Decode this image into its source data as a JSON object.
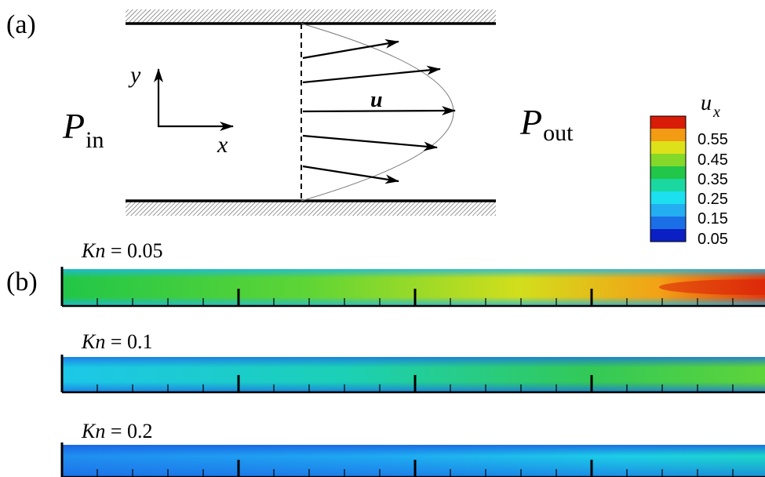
{
  "panel_a": {
    "label": "(a)",
    "p_in": {
      "symbol": "P",
      "subscript": "in"
    },
    "p_out": {
      "symbol": "P",
      "subscript": "out"
    },
    "axis_y": "y",
    "axis_x": "x",
    "velocity_label": "u"
  },
  "legend": {
    "symbol": "u",
    "subscript": "x",
    "levels": [
      "0.55",
      "0.45",
      "0.35",
      "0.25",
      "0.15",
      "0.05"
    ],
    "colors": [
      "#d81c08",
      "#f39b12",
      "#dde11a",
      "#84d82a",
      "#22c648",
      "#1ad8a0",
      "#1cdff0",
      "#23aef2",
      "#1b6fe6",
      "#0a20c4"
    ]
  },
  "panel_b": {
    "label": "(b)",
    "channels": [
      {
        "kn_symbol": "Kn",
        "kn_value": " = 0.05"
      },
      {
        "kn_symbol": "Kn",
        "kn_value": " = 0.1"
      },
      {
        "kn_symbol": "Kn",
        "kn_value": " = 0.2"
      }
    ]
  }
}
